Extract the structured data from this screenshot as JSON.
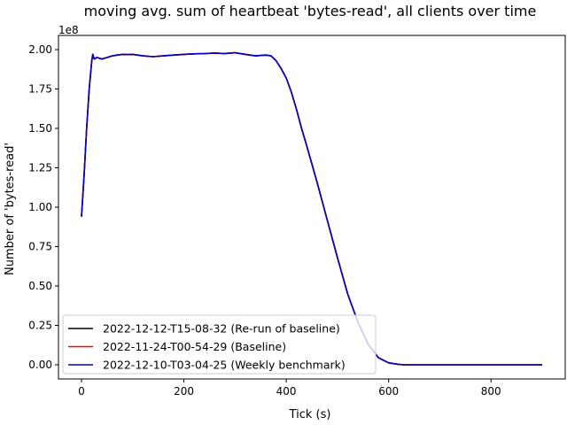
{
  "chart_data": {
    "type": "line",
    "title": "moving avg. sum of heartbeat 'bytes-read', all clients over time",
    "xlabel": "Tick (s)",
    "ylabel": "Number of 'bytes-read'",
    "y_offset_label": "1e8",
    "xlim": [
      -45,
      945
    ],
    "ylim": [
      -9000000,
      209000000
    ],
    "x_ticks": [
      0,
      200,
      400,
      600,
      800
    ],
    "x_tick_labels": [
      "0",
      "200",
      "400",
      "600",
      "800"
    ],
    "y_ticks": [
      0,
      25000000,
      50000000,
      75000000,
      100000000,
      125000000,
      150000000,
      175000000,
      200000000
    ],
    "y_tick_labels": [
      "0.00",
      "0.25",
      "0.50",
      "0.75",
      "1.00",
      "1.25",
      "1.50",
      "1.75",
      "2.00"
    ],
    "grid": false,
    "legend_position": "lower-left",
    "series": [
      {
        "name": "2022-12-12-T15-08-32 (Re-run of baseline)",
        "color": "#000000",
        "x": [
          0,
          5,
          10,
          15,
          20,
          22,
          25,
          30,
          40,
          50,
          60,
          70,
          80,
          90,
          100,
          120,
          140,
          160,
          180,
          200,
          220,
          240,
          260,
          280,
          300,
          320,
          340,
          360,
          370,
          380,
          390,
          400,
          410,
          420,
          430,
          440,
          460,
          480,
          500,
          520,
          540,
          560,
          580,
          600,
          620,
          630,
          640,
          650,
          660,
          670,
          680,
          700,
          750,
          800,
          850,
          900
        ],
        "values": [
          94000000,
          120000000,
          150000000,
          175000000,
          193000000,
          197000000,
          194000000,
          195000000,
          194000000,
          195000000,
          196000000,
          196500000,
          197000000,
          196800000,
          197000000,
          196000000,
          195500000,
          196000000,
          196500000,
          197000000,
          197300000,
          197500000,
          197800000,
          197500000,
          198000000,
          197000000,
          196000000,
          196500000,
          196000000,
          193000000,
          188000000,
          182000000,
          173000000,
          162000000,
          150000000,
          139000000,
          116000000,
          92000000,
          68000000,
          45000000,
          27000000,
          13000000,
          4500000,
          1200000,
          200000,
          0,
          0,
          0,
          0,
          0,
          0,
          0,
          0,
          0,
          0,
          0
        ]
      },
      {
        "name": "2022-11-24-T00-54-29 (Baseline)",
        "color": "#ff0000",
        "x": [
          0,
          5,
          10,
          15,
          20,
          22,
          25,
          30,
          40,
          50,
          60,
          70,
          80,
          90,
          100,
          120,
          140,
          160,
          180,
          200,
          220,
          240,
          260,
          280,
          300,
          320,
          340,
          360,
          370,
          380,
          390,
          400,
          410,
          420,
          430,
          440,
          460,
          480,
          500,
          520,
          540,
          560,
          580,
          600,
          620,
          630,
          640,
          650,
          660,
          670,
          680,
          700,
          750,
          800,
          850,
          900
        ],
        "values": [
          94000000,
          120000000,
          150000000,
          175000000,
          193000000,
          197000000,
          194000000,
          195000000,
          194000000,
          195000000,
          196000000,
          196500000,
          197000000,
          196800000,
          197000000,
          196000000,
          195500000,
          196000000,
          196500000,
          197000000,
          197300000,
          197500000,
          197800000,
          197500000,
          198000000,
          197000000,
          196000000,
          196500000,
          196000000,
          193000000,
          188000000,
          182000000,
          173000000,
          162000000,
          150000000,
          139000000,
          116000000,
          92000000,
          68000000,
          45000000,
          27000000,
          13000000,
          4500000,
          1200000,
          200000,
          0,
          0,
          0,
          0,
          0,
          0,
          0,
          0,
          0,
          0,
          0
        ]
      },
      {
        "name": "2022-12-10-T03-04-25 (Weekly benchmark)",
        "color": "#0000cc",
        "x": [
          0,
          5,
          10,
          15,
          20,
          22,
          25,
          30,
          40,
          50,
          60,
          70,
          80,
          90,
          100,
          120,
          140,
          160,
          180,
          200,
          220,
          240,
          260,
          280,
          300,
          320,
          340,
          360,
          370,
          380,
          390,
          400,
          410,
          420,
          430,
          440,
          460,
          480,
          500,
          520,
          540,
          560,
          580,
          600,
          620,
          630,
          640,
          650,
          660,
          670,
          680,
          700,
          750,
          800,
          850,
          900
        ],
        "values": [
          94000000,
          120000000,
          150000000,
          175000000,
          193000000,
          197000000,
          194000000,
          195000000,
          194000000,
          195000000,
          196000000,
          196500000,
          197000000,
          196800000,
          197000000,
          196000000,
          195500000,
          196000000,
          196500000,
          197000000,
          197300000,
          197500000,
          197800000,
          197500000,
          198000000,
          197000000,
          196000000,
          196500000,
          196000000,
          193000000,
          188000000,
          182000000,
          173000000,
          162000000,
          150000000,
          139000000,
          116000000,
          92000000,
          68000000,
          45000000,
          27000000,
          13000000,
          4500000,
          1200000,
          200000,
          0,
          0,
          0,
          0,
          0,
          0,
          0,
          0,
          0,
          0,
          0
        ]
      }
    ]
  }
}
